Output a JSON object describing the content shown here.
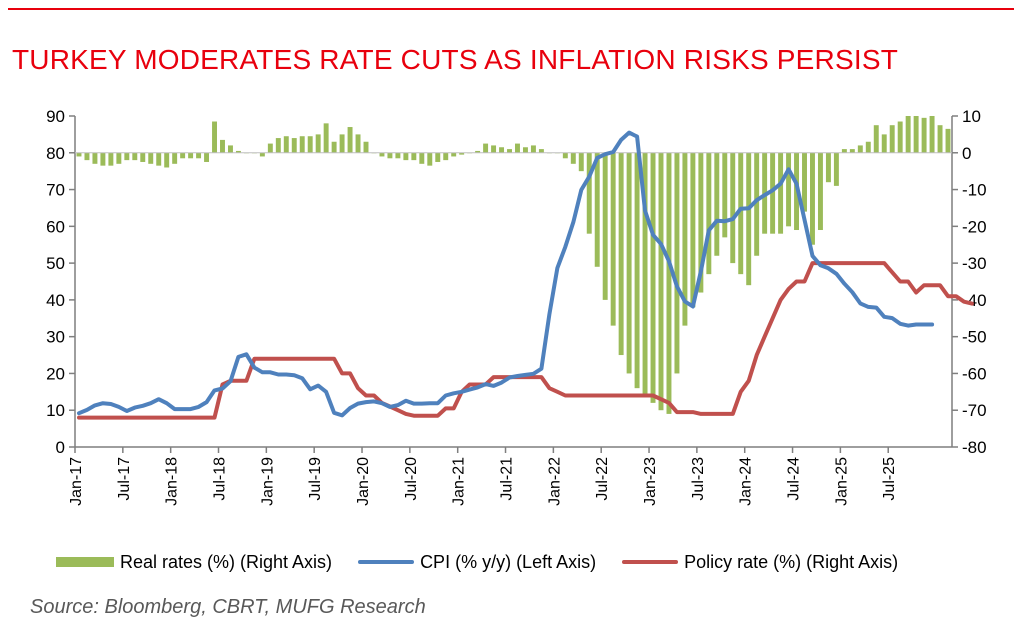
{
  "title": "TURKEY MODERATES RATE CUTS AS INFLATION RISKS PERSIST",
  "source": "Source: Bloomberg, CBRT, MUFG Research",
  "colors": {
    "title": "#e8000d",
    "real_rates": "#9bbb59",
    "cpi": "#4f81bd",
    "policy_rate": "#c0504d"
  },
  "chart_data": {
    "type": "bar",
    "title": "TURKEY MODERATES RATE CUTS AS INFLATION RISKS PERSIST",
    "x_tick_labels": [
      "Jan-17",
      "Jul-17",
      "Jan-18",
      "Jul-18",
      "Jan-19",
      "Jul-19",
      "Jan-20",
      "Jul-20",
      "Jan-21",
      "Jul-21",
      "Jan-22",
      "Jul-22",
      "Jan-23",
      "Jul-23",
      "Jan-24",
      "Jul-24",
      "Jan-25",
      "Jul-25"
    ],
    "x_start": "2017-01",
    "left_axis": {
      "label": "",
      "ylim": [
        0,
        90
      ],
      "ticks": [
        0,
        10,
        20,
        30,
        40,
        50,
        60,
        70,
        80,
        90
      ]
    },
    "right_axis": {
      "label": "",
      "ylim": [
        -80,
        10
      ],
      "ticks": [
        -80,
        -70,
        -60,
        -50,
        -40,
        -30,
        -20,
        -10,
        0,
        10
      ]
    },
    "grid": false,
    "legend_position": "bottom",
    "series": [
      {
        "name": "Real rates (%) (Right Axis)",
        "type": "bar",
        "axis": "right",
        "values": [
          -1,
          -2,
          -3,
          -3.5,
          -3.5,
          -3,
          -2,
          -2,
          -2.5,
          -3,
          -3.5,
          -4,
          -3,
          -1.5,
          -1.5,
          -1.5,
          -2.5,
          8.5,
          3.5,
          2,
          0.5,
          0,
          0,
          -1,
          2.5,
          4,
          4.5,
          4,
          4.5,
          4.5,
          5,
          8,
          3,
          5,
          7,
          5,
          3,
          0,
          -1,
          -1.5,
          -1.5,
          -2,
          -2,
          -3,
          -3.5,
          -2.5,
          -2,
          -1,
          -0.5,
          0,
          0.5,
          2.5,
          2,
          1.5,
          1,
          2.5,
          1.5,
          2,
          1,
          0,
          0,
          -1.5,
          -3,
          -5,
          -22,
          -31,
          -40,
          -47,
          -55,
          -60,
          -64,
          -66,
          -68,
          -70,
          -71,
          -60,
          -47,
          -42,
          -38,
          -33,
          -28,
          -23,
          -30,
          -33,
          -36,
          -28,
          -22,
          -22,
          -22,
          -20,
          -21,
          -16,
          -25,
          -21,
          -8,
          -9,
          1,
          1,
          2,
          3,
          7.5,
          5,
          7.5,
          8.5,
          10,
          10,
          9.5,
          10,
          7.5,
          6.5
        ],
        "value_labels": []
      },
      {
        "name": "CPI (% y/y) (Left Axis)",
        "type": "line",
        "axis": "left",
        "values": [
          9.2,
          10.1,
          11.3,
          11.9,
          11.7,
          10.9,
          9.8,
          10.7,
          11.2,
          11.9,
          13,
          11.9,
          10.3,
          10.3,
          10.3,
          10.9,
          12.2,
          15.4,
          15.9,
          17.9,
          24.5,
          25.2,
          21.6,
          20.3,
          20.3,
          19.7,
          19.7,
          19.5,
          18.7,
          15.7,
          16.7,
          15,
          9.3,
          8.6,
          10.6,
          11.8,
          12.2,
          12.4,
          11.9,
          10.9,
          11.4,
          12.6,
          11.8,
          11.8,
          11.9,
          11.9,
          14,
          14.6,
          15,
          15.6,
          16.2,
          17.1,
          16.6,
          17.5,
          18.9,
          19.3,
          19.6,
          19.9,
          21.3,
          36.1,
          48.7,
          54.4,
          61.1,
          69.9,
          73.5,
          78.6,
          79.6,
          80.2,
          83.5,
          85.5,
          84.4,
          64.3,
          57.7,
          55.2,
          50.5,
          43.7,
          39.6,
          38.2,
          47.8,
          58.9,
          61.5,
          61.4,
          61.98,
          64.8,
          64.9,
          67.1,
          68.5,
          69.8,
          71.6,
          75.5,
          71.6,
          61.8,
          51.97,
          49.4,
          48.6,
          47.1,
          44.4,
          42.1,
          39.05,
          38.1,
          37.9,
          35.4,
          35.05,
          33.5,
          33.0,
          33.3,
          33.3,
          33.3
        ],
        "value_labels": []
      },
      {
        "name": "Policy rate (%) (Right Axis)",
        "type": "line",
        "axis": "right",
        "values": [
          -72,
          -72,
          -72,
          -72,
          -72,
          -72,
          -72,
          -72,
          -72,
          -72,
          -72,
          -72,
          -72,
          -72,
          -72,
          -72,
          -72,
          -72,
          -63,
          -62,
          -62,
          -62,
          -56,
          -56,
          -56,
          -56,
          -56,
          -56,
          -56,
          -56,
          -56,
          -56,
          -56,
          -60,
          -60,
          -64,
          -66,
          -66,
          -68,
          -69,
          -70,
          -71,
          -71.5,
          -71.5,
          -71.5,
          -71.5,
          -69.5,
          -69.5,
          -65,
          -63,
          -63,
          -63,
          -61,
          -61,
          -61,
          -61,
          -61,
          -61,
          -61,
          -64,
          -65,
          -66,
          -66,
          -66,
          -66,
          -66,
          -66,
          -66,
          -66,
          -66,
          -66,
          -66,
          -66,
          -67,
          -68,
          -70.5,
          -70.5,
          -70.5,
          -71,
          -71,
          -71,
          -71,
          -71,
          -65,
          -62,
          -55,
          -50,
          -45,
          -40,
          -37,
          -35,
          -35,
          -30,
          -30,
          -30,
          -30,
          -30,
          -30,
          -30,
          -30,
          -30,
          -30,
          -32.5,
          -35,
          -35,
          -38,
          -36,
          -36,
          -36,
          -39,
          -39,
          -40.5,
          -41
        ],
        "value_labels": []
      }
    ]
  }
}
